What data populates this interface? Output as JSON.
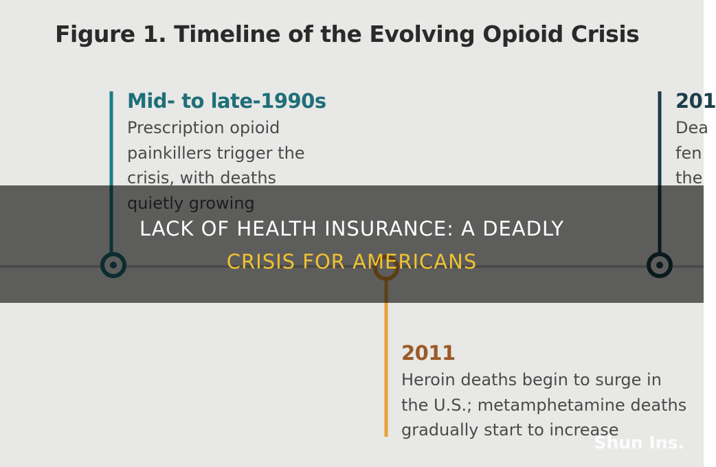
{
  "figure": {
    "title": "Figure 1. Timeline of the Evolving Opioid Crisis",
    "events": [
      {
        "heading": "Mid- to late-1990s",
        "lines": [
          "Prescription opioid",
          "painkillers trigger the",
          "crisis, with deaths",
          "quietly growing"
        ]
      },
      {
        "heading": "2011",
        "lines": [
          "Heroin deaths begin to surge in",
          "the U.S.; metamphetamine deaths",
          "gradually start to increase"
        ]
      },
      {
        "heading": "201",
        "lines": [
          "Dea",
          "fen",
          "the"
        ]
      }
    ]
  },
  "overlay": {
    "title_lines": [
      "LACK OF HEALTH INSURANCE: A DEADLY",
      "CRISIS FOR AMERICANS"
    ]
  },
  "watermark": "Shun Ins."
}
